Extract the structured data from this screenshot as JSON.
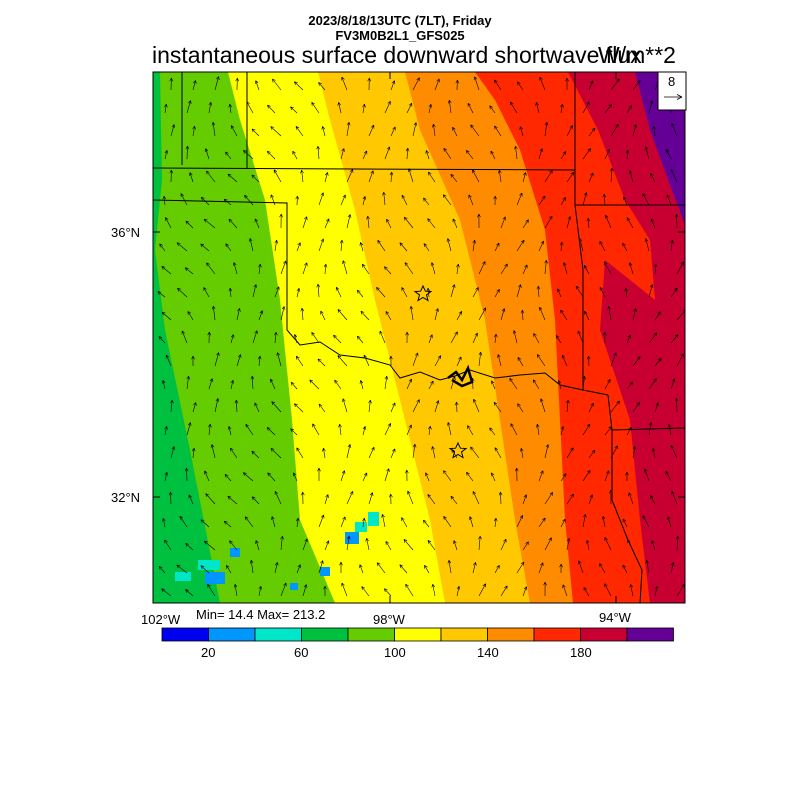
{
  "header": {
    "date_line": "2023/8/18/13UTC (7LT), Friday",
    "model_line": "FV3M0B2L1_GFS025",
    "title": "instantaneous surface downward shortwave flux",
    "units": "W/m**2"
  },
  "map": {
    "lat_labels": [
      "36°N",
      "32°N"
    ],
    "lon_labels": [
      "102°W",
      "98°W",
      "94°W"
    ],
    "markers": [
      "star",
      "star"
    ],
    "wind_reference_value": "8"
  },
  "colorbar": {
    "stats": "Min= 14.4 Max= 213.2",
    "labels": [
      "20",
      "60",
      "100",
      "140",
      "180"
    ],
    "colors": [
      "#0000f0",
      "#0096ff",
      "#00e6c8",
      "#00c040",
      "#64cc00",
      "#ffff00",
      "#ffc800",
      "#ff8c00",
      "#ff2800",
      "#c80032",
      "#640096"
    ]
  }
}
